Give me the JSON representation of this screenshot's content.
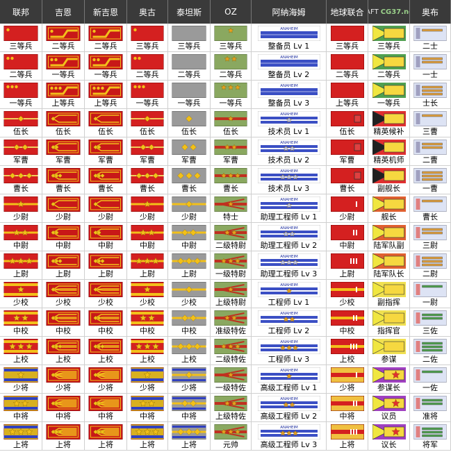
{
  "headers": [
    "联邦",
    "吉恩",
    "新吉恩",
    "奥古",
    "泰坦斯",
    "OZ",
    "阿納海姆",
    "地球联合",
    "ZAFT",
    "奥布"
  ],
  "watermark": "CG37.net",
  "rows": [
    [
      "三等兵",
      "二等兵",
      "二等兵",
      "三等兵",
      "三等兵",
      "三等兵",
      "整备员 Lv 1",
      "三等兵",
      "三等兵",
      "二士"
    ],
    [
      "二等兵",
      "一等兵",
      "一等兵",
      "二等兵",
      "二等兵",
      "二等兵",
      "整备员 Lv 2",
      "二等兵",
      "二等兵",
      "一士"
    ],
    [
      "一等兵",
      "上等兵",
      "上等兵",
      "一等兵",
      "一等兵",
      "一等兵",
      "整备员 Lv 3",
      "上等兵",
      "一等兵",
      "士长"
    ],
    [
      "伍长",
      "伍长",
      "伍长",
      "伍长",
      "伍长",
      "伍长",
      "技术员 Lv 1",
      "伍长",
      "精英候补",
      "三曹"
    ],
    [
      "军曹",
      "军曹",
      "军曹",
      "军曹",
      "军曹",
      "军曹",
      "技术员 Lv 2",
      "军曹",
      "精英机师",
      "二曹"
    ],
    [
      "曹长",
      "曹长",
      "曹长",
      "曹长",
      "曹长",
      "曹长",
      "技术员 Lv 3",
      "曹长",
      "副舰长",
      "一曹"
    ],
    [
      "少尉",
      "少尉",
      "少尉",
      "少尉",
      "少尉",
      "特士",
      "助理工程师 Lv 1",
      "少尉",
      "舰长",
      "曹长"
    ],
    [
      "中尉",
      "中尉",
      "中尉",
      "中尉",
      "中尉",
      "二级特尉",
      "助理工程师 Lv 2",
      "中尉",
      "陆军队副",
      "三尉"
    ],
    [
      "上尉",
      "上尉",
      "上尉",
      "上尉",
      "上尉",
      "一级特尉",
      "助理工程师 Lv 3",
      "上尉",
      "陆军队长",
      "二尉"
    ],
    [
      "少校",
      "少校",
      "少校",
      "少校",
      "少校",
      "上级特尉",
      "工程师 Lv 1",
      "少校",
      "副指挥",
      "一尉"
    ],
    [
      "中校",
      "中校",
      "中校",
      "中校",
      "中校",
      "准级特佐",
      "工程师 Lv 2",
      "中校",
      "指挥官",
      "三佐"
    ],
    [
      "上校",
      "上校",
      "上校",
      "上校",
      "上校",
      "二级特佐",
      "工程师 Lv 3",
      "上校",
      "参谋",
      "二佐"
    ],
    [
      "少将",
      "少将",
      "少将",
      "少将",
      "少将",
      "一级特佐",
      "高级工程师 Lv 1",
      "少将",
      "参谋长",
      "一佐"
    ],
    [
      "中将",
      "中将",
      "中将",
      "中将",
      "中将",
      "上级特佐",
      "高级工程师 Lv 2",
      "中将",
      "议员",
      "准将"
    ],
    [
      "上将",
      "上将",
      "上将",
      "上将",
      "上将",
      "元帅",
      "高级工程师 Lv 3",
      "上将",
      "议长",
      "将军"
    ]
  ],
  "anaheim_logo_text": "ANAHEIM",
  "colors": {
    "header_bg": "#3a3a3a",
    "federation_red": "#d42020",
    "zeon_red": "#c81818",
    "gold": "#f2c01a",
    "titans_gray": "#9a9a9a",
    "oz_green": "#8aa860",
    "anaheim_blue": "#3b4fc4",
    "zaft_yellow": "#f0e640",
    "orb_blue": "#dde3f4"
  },
  "icons": {
    "federation": "rank-bar-icon",
    "zeon": "zeon-rank-collar-icon",
    "titans": "titans-rank-bar-icon",
    "oz": "oz-rank-badge-icon",
    "anaheim": "anaheim-badge-icon",
    "earth_alliance": "earth-alliance-rank-icon",
    "zaft": "zaft-chevron-rank-icon",
    "orb": "orb-rank-bar-icon"
  }
}
